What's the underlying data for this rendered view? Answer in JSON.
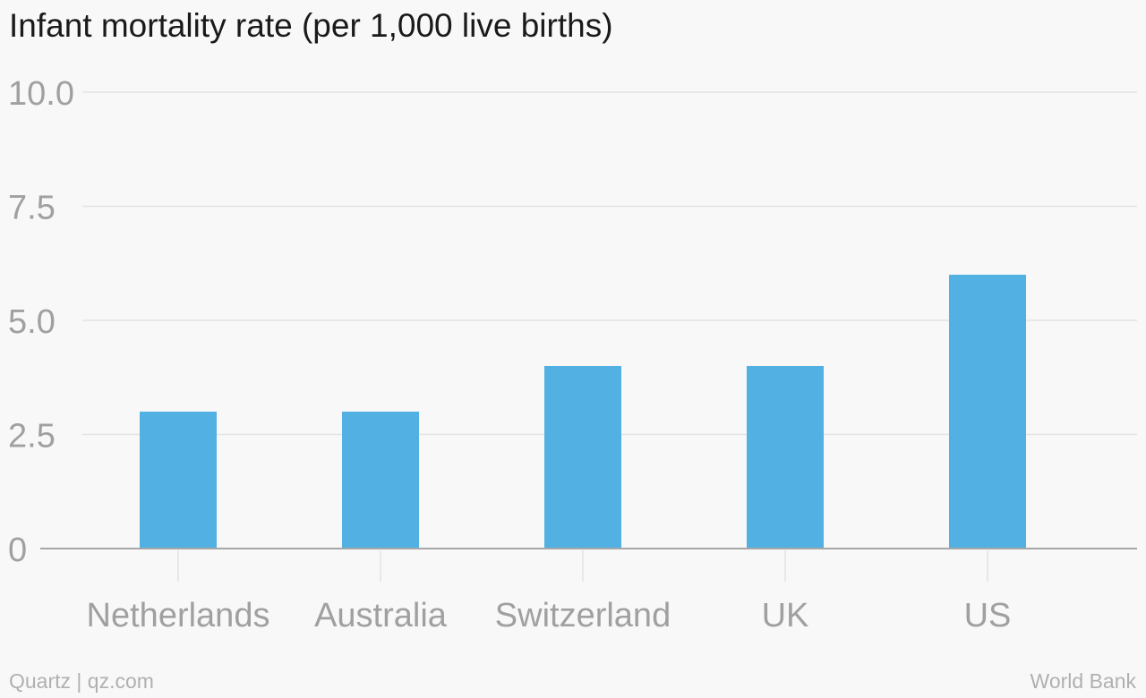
{
  "title": "Infant mortality rate (per 1,000 live births)",
  "footer": {
    "credit": "Quartz | qz.com",
    "source": "World Bank"
  },
  "colors": {
    "bar": "#52b0e2",
    "grid": "#e3e3e3",
    "axis": "#a7a7a7",
    "tick_text": "#a0a0a0",
    "title": "#1a1a1a",
    "background": "#f8f8f8"
  },
  "chart_data": {
    "type": "bar",
    "title": "Infant mortality rate (per 1,000 live births)",
    "xlabel": "",
    "ylabel": "",
    "categories": [
      "Netherlands",
      "Australia",
      "Switzerland",
      "UK",
      "US"
    ],
    "values": [
      3,
      3,
      4,
      4,
      6
    ],
    "ylim": [
      0,
      10
    ],
    "yticks": [
      0,
      2.5,
      5,
      7.5,
      10
    ],
    "ytick_labels": [
      "0",
      "2.5",
      "5.0",
      "7.5",
      "10.0"
    ],
    "grid": true,
    "legend": "none"
  }
}
